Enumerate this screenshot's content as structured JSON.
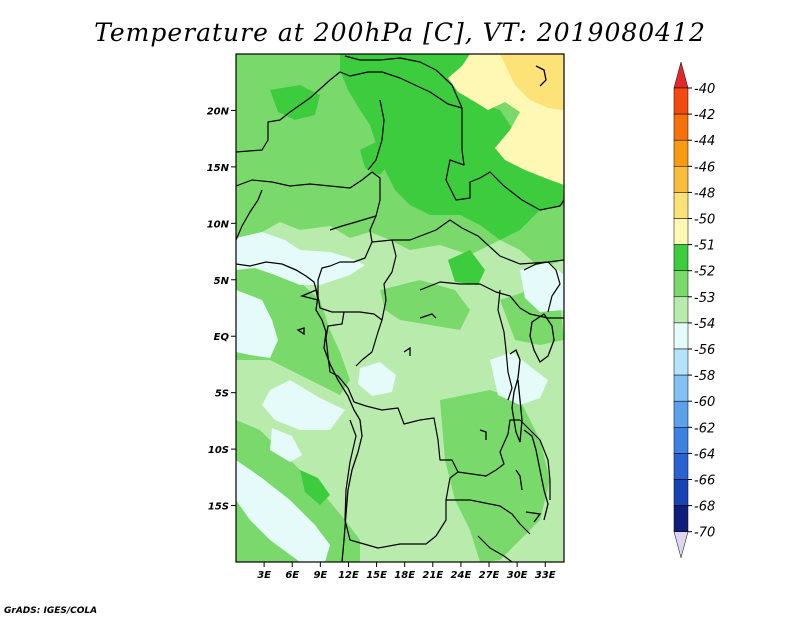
{
  "title": "Temperature at 200hPa [C], VT: 2019080412",
  "footer": "GrADS: IGES/COLA",
  "map": {
    "lon_range": [
      0,
      35
    ],
    "lat_range": [
      -20,
      25
    ],
    "lat_ticks": [
      {
        "value": 20,
        "label": "20N"
      },
      {
        "value": 15,
        "label": "15N"
      },
      {
        "value": 10,
        "label": "10N"
      },
      {
        "value": 5,
        "label": "5N"
      },
      {
        "value": 0,
        "label": "EQ"
      },
      {
        "value": -5,
        "label": "5S"
      },
      {
        "value": -10,
        "label": "10S"
      },
      {
        "value": -15,
        "label": "15S"
      }
    ],
    "lon_ticks": [
      {
        "value": 3,
        "label": "3E"
      },
      {
        "value": 6,
        "label": "6E"
      },
      {
        "value": 9,
        "label": "9E"
      },
      {
        "value": 12,
        "label": "12E"
      },
      {
        "value": 15,
        "label": "15E"
      },
      {
        "value": 18,
        "label": "18E"
      },
      {
        "value": 21,
        "label": "21E"
      },
      {
        "value": 24,
        "label": "24E"
      },
      {
        "value": 27,
        "label": "27E"
      },
      {
        "value": 30,
        "label": "30E"
      },
      {
        "value": 33,
        "label": "33E"
      }
    ]
  },
  "colorbar": {
    "labels": [
      "-40",
      "-42",
      "-44",
      "-46",
      "-48",
      "-50",
      "-51",
      "-52",
      "-53",
      "-54",
      "-56",
      "-58",
      "-60",
      "-62",
      "-64",
      "-66",
      "-68",
      "-70"
    ],
    "colors": [
      "#e3272a",
      "#f24a0f",
      "#f7710b",
      "#f99b10",
      "#fbbe3a",
      "#fde277",
      "#fef8b4",
      "#3dcc3d",
      "#7ad96b",
      "#b9ecac",
      "#e4fbfa",
      "#b5e3fb",
      "#83c1f2",
      "#5ba2eb",
      "#3c82e1",
      "#2a62d1",
      "#1943b5",
      "#0d1e7d",
      "#dcd6f0"
    ]
  },
  "fill_colors": {
    "background": "#b9ecac",
    "green_mid": "#7ad96b",
    "green_dark": "#3dcc3d",
    "yellow": "#fef8b4",
    "cyan": "#e4fbfa"
  }
}
